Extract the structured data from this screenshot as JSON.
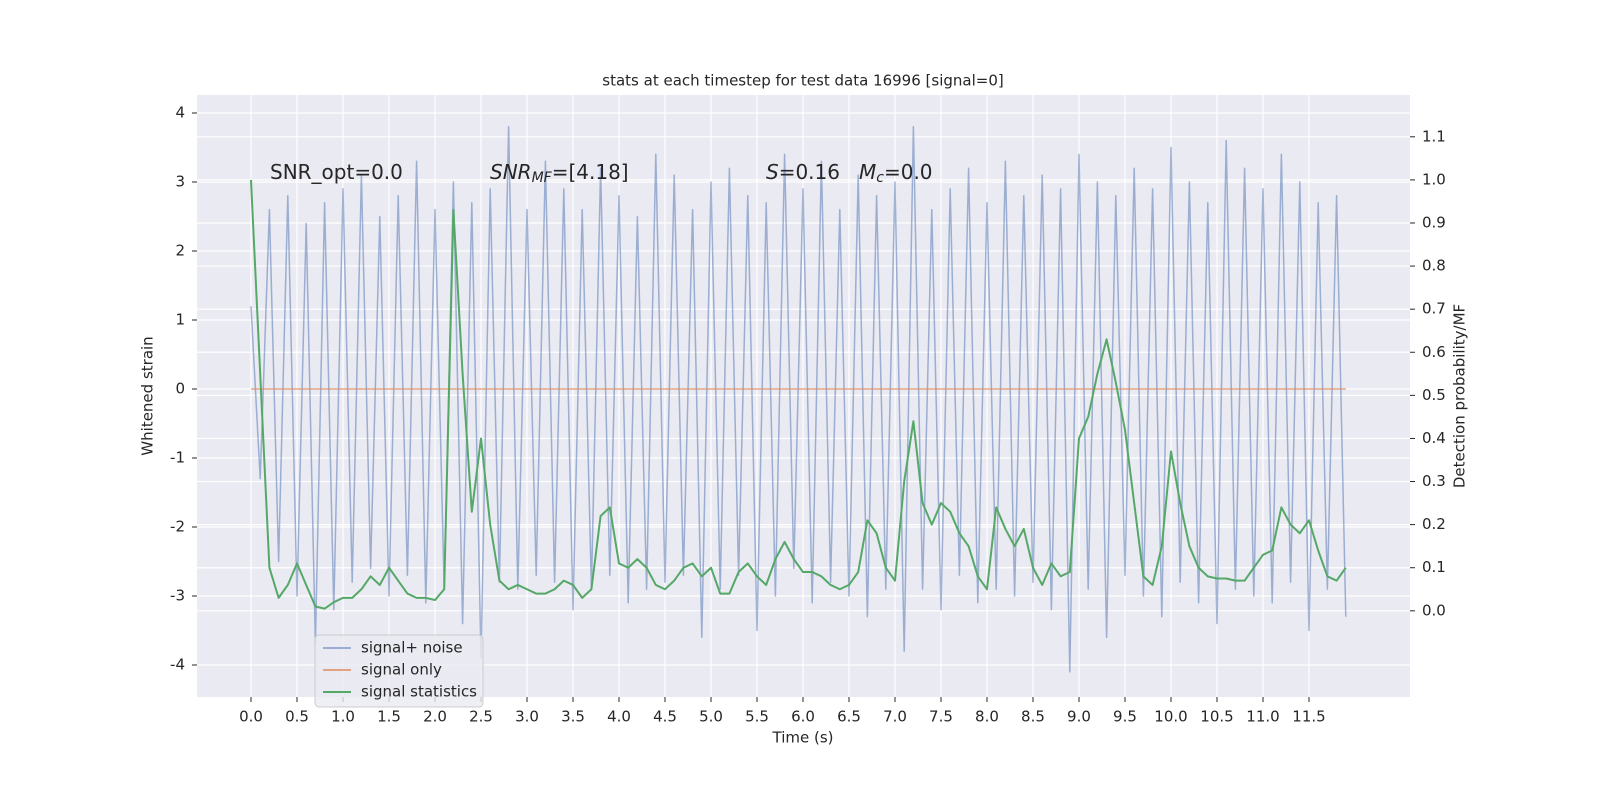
{
  "chart_data": {
    "type": "line",
    "title": "stats at each timestep for test data 16996 [signal=0]",
    "xlabel": "Time (s)",
    "ylabel": "Whitened strain",
    "y2label": "Detection probability/MF",
    "grid": true,
    "legend": "lower left",
    "xlim": [
      -0.587,
      12.598
    ],
    "ylim": [
      -4.464,
      4.261
    ],
    "y2lim": [
      -0.2,
      1.197
    ],
    "xticks": [
      {
        "value": 0,
        "label": "0.0"
      },
      0.5,
      {
        "value": 1,
        "label": "1.0"
      },
      1.5,
      {
        "value": 2,
        "label": "2.0"
      },
      2.5,
      {
        "value": 3,
        "label": "3.0"
      },
      3.5,
      {
        "value": 4,
        "label": "4.0"
      },
      4.5,
      {
        "value": 5,
        "label": "5.0"
      },
      5.5,
      {
        "value": 6,
        "label": "6.0"
      },
      6.5,
      {
        "value": 7,
        "label": "7.0"
      },
      7.5,
      {
        "value": 8,
        "label": "8.0"
      },
      8.5,
      {
        "value": 9,
        "label": "9.0"
      },
      9.5,
      {
        "value": 10,
        "label": "10.0"
      },
      10.5,
      {
        "value": 11,
        "label": "11.0"
      },
      11.5
    ],
    "yticks": [
      -4,
      -3,
      -2,
      -1,
      0,
      1,
      2,
      3,
      4
    ],
    "y2ticks": [
      {
        "value": 0,
        "label": "0.0"
      },
      0.1,
      0.2,
      0.3,
      0.4,
      0.5,
      0.6,
      0.7,
      0.8,
      0.9,
      {
        "value": 1,
        "label": "1.0"
      },
      1.1
    ],
    "annotations": [
      [
        {
          "text": "SNR_opt=0.0"
        }
      ],
      [
        {
          "text": "SNR",
          "style": "italic"
        },
        {
          "text": "MF",
          "style": "sub-italic"
        },
        {
          "text": "=[4.18]"
        }
      ],
      [
        {
          "text": "S",
          "style": "italic"
        },
        {
          "text": "=0.16"
        }
      ],
      [
        {
          "text": "M",
          "style": "italic"
        },
        {
          "text": "c",
          "style": "sub-italic"
        },
        {
          "text": "=0.0"
        }
      ]
    ],
    "x": [
      0,
      0.1,
      0.2,
      0.3,
      0.4,
      0.5,
      0.6,
      0.7,
      0.8,
      0.9,
      1,
      1.1,
      1.2,
      1.3,
      1.4,
      1.5,
      1.6,
      1.7,
      1.8,
      1.9,
      2,
      2.1,
      2.2,
      2.3,
      2.4,
      2.5,
      2.6,
      2.7,
      2.8,
      2.9,
      3,
      3.1,
      3.2,
      3.3,
      3.4,
      3.5,
      3.6,
      3.7,
      3.8,
      3.9,
      4,
      4.1,
      4.2,
      4.3,
      4.4,
      4.5,
      4.6,
      4.7,
      4.8,
      4.9,
      5,
      5.1,
      5.2,
      5.3,
      5.4,
      5.5,
      5.6,
      5.7,
      5.8,
      5.9,
      6,
      6.1,
      6.2,
      6.3,
      6.4,
      6.5,
      6.6,
      6.7,
      6.8,
      6.9,
      7,
      7.1,
      7.2,
      7.3,
      7.4,
      7.5,
      7.6,
      7.7,
      7.8,
      7.9,
      8,
      8.1,
      8.2,
      8.3,
      8.4,
      8.5,
      8.6,
      8.7,
      8.8,
      8.9,
      9,
      9.1,
      9.2,
      9.3,
      9.4,
      9.5,
      9.6,
      9.7,
      9.8,
      9.9,
      10,
      10.1,
      10.2,
      10.3,
      10.4,
      10.5,
      10.6,
      10.7,
      10.8,
      10.9,
      11,
      11.1,
      11.2,
      11.3,
      11.4,
      11.5,
      11.6,
      11.7,
      11.8,
      11.9
    ],
    "series": [
      {
        "name": "signal+ noise",
        "color": "#4c72b0",
        "opacity": 0.5,
        "axis": "y",
        "values": [
          1.2,
          -1.3,
          2.6,
          -2.5,
          2.8,
          -3.0,
          2.4,
          -3.7,
          2.7,
          -3.2,
          2.9,
          -2.8,
          3.1,
          -2.6,
          2.5,
          -3.0,
          2.8,
          -2.7,
          3.3,
          -3.1,
          2.6,
          -2.9,
          3.0,
          -3.4,
          2.7,
          -3.9,
          2.9,
          -2.8,
          3.8,
          -2.9,
          2.6,
          -2.7,
          3.3,
          -2.8,
          2.9,
          -3.2,
          2.6,
          -2.9,
          3.2,
          -2.7,
          2.8,
          -3.1,
          2.5,
          -2.9,
          3.4,
          -2.8,
          3.1,
          -2.7,
          2.6,
          -3.6,
          3.0,
          -2.9,
          3.2,
          -2.7,
          2.8,
          -3.5,
          2.7,
          -3.0,
          3.4,
          -2.6,
          2.9,
          -3.1,
          3.3,
          -2.8,
          2.6,
          -3.0,
          3.1,
          -3.3,
          2.8,
          -2.9,
          3.0,
          -3.8,
          3.8,
          -2.9,
          2.6,
          -3.2,
          2.9,
          -2.7,
          3.2,
          -3.1,
          2.7,
          -2.9,
          3.3,
          -3.0,
          2.8,
          -2.8,
          3.1,
          -3.2,
          2.9,
          -4.1,
          3.4,
          -2.9,
          3.0,
          -3.6,
          2.8,
          -2.7,
          3.2,
          -3.0,
          2.9,
          -3.3,
          3.5,
          -2.8,
          3.0,
          -3.1,
          2.7,
          -3.4,
          3.6,
          -2.9,
          3.2,
          -3.0,
          2.9,
          -3.1,
          3.4,
          -2.8,
          3.0,
          -3.5,
          2.7,
          -2.9,
          2.8,
          -3.3
        ]
      },
      {
        "name": "signal only",
        "color": "#dd8452",
        "opacity": 0.7,
        "axis": "y",
        "values": [
          0,
          0,
          0,
          0,
          0,
          0,
          0,
          0,
          0,
          0,
          0,
          0,
          0,
          0,
          0,
          0,
          0,
          0,
          0,
          0,
          0,
          0,
          0,
          0,
          0,
          0,
          0,
          0,
          0,
          0,
          0,
          0,
          0,
          0,
          0,
          0,
          0,
          0,
          0,
          0,
          0,
          0,
          0,
          0,
          0,
          0,
          0,
          0,
          0,
          0,
          0,
          0,
          0,
          0,
          0,
          0,
          0,
          0,
          0,
          0,
          0,
          0,
          0,
          0,
          0,
          0,
          0,
          0,
          0,
          0,
          0,
          0,
          0,
          0,
          0,
          0,
          0,
          0,
          0,
          0,
          0,
          0,
          0,
          0,
          0,
          0,
          0,
          0,
          0,
          0,
          0,
          0,
          0,
          0,
          0,
          0,
          0,
          0,
          0,
          0,
          0,
          0,
          0,
          0,
          0,
          0,
          0,
          0,
          0,
          0,
          0,
          0,
          0,
          0,
          0,
          0,
          0,
          0,
          0,
          0
        ]
      },
      {
        "name": "signal statistics",
        "color": "#55a868",
        "opacity": 1,
        "axis": "y2",
        "values": [
          1.0,
          0.55,
          0.1,
          0.03,
          0.06,
          0.11,
          0.06,
          0.01,
          0.005,
          0.02,
          0.03,
          0.03,
          0.05,
          0.08,
          0.06,
          0.1,
          0.07,
          0.04,
          0.03,
          0.03,
          0.025,
          0.05,
          0.93,
          0.55,
          0.23,
          0.4,
          0.2,
          0.07,
          0.05,
          0.06,
          0.05,
          0.04,
          0.04,
          0.05,
          0.07,
          0.06,
          0.03,
          0.05,
          0.22,
          0.24,
          0.11,
          0.1,
          0.12,
          0.1,
          0.06,
          0.05,
          0.07,
          0.1,
          0.11,
          0.08,
          0.1,
          0.04,
          0.04,
          0.09,
          0.11,
          0.08,
          0.06,
          0.12,
          0.16,
          0.12,
          0.09,
          0.09,
          0.08,
          0.06,
          0.05,
          0.06,
          0.09,
          0.21,
          0.18,
          0.1,
          0.07,
          0.3,
          0.44,
          0.25,
          0.2,
          0.25,
          0.23,
          0.18,
          0.15,
          0.08,
          0.05,
          0.24,
          0.19,
          0.15,
          0.19,
          0.1,
          0.06,
          0.11,
          0.08,
          0.09,
          0.4,
          0.45,
          0.55,
          0.63,
          0.53,
          0.42,
          0.25,
          0.08,
          0.06,
          0.15,
          0.37,
          0.25,
          0.15,
          0.1,
          0.08,
          0.075,
          0.075,
          0.07,
          0.07,
          0.1,
          0.13,
          0.14,
          0.24,
          0.2,
          0.18,
          0.21,
          0.14,
          0.08,
          0.07,
          0.1
        ]
      }
    ]
  }
}
